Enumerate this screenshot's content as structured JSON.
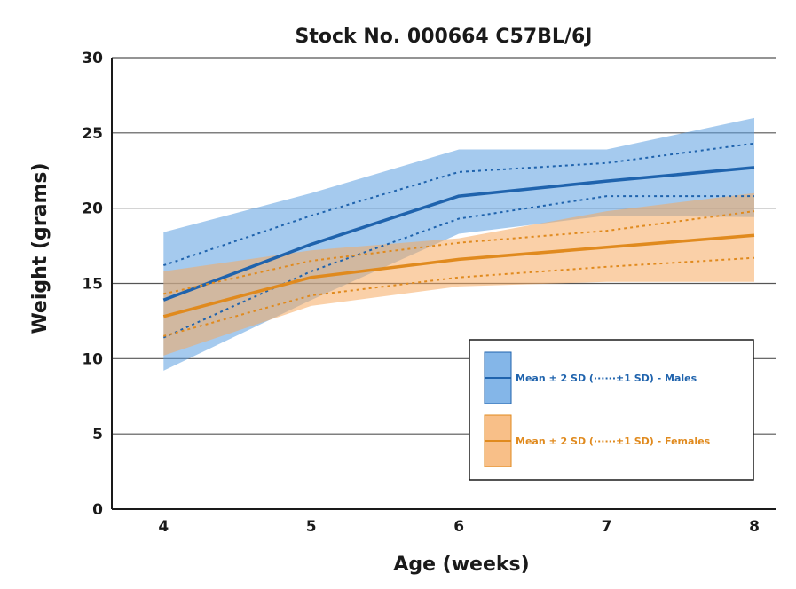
{
  "chart_data": {
    "type": "area",
    "title": "Stock No. 000664 C57BL/6J",
    "xlabel": "Age (weeks)",
    "ylabel": "Weight (grams)",
    "x": [
      4,
      5,
      6,
      7,
      8
    ],
    "x_ticks": [
      "4",
      "5",
      "6",
      "7",
      "8"
    ],
    "y_ticks": [
      "0",
      "5",
      "10",
      "15",
      "20",
      "25",
      "30"
    ],
    "xlim": [
      3.65,
      8.15
    ],
    "ylim": [
      0,
      30
    ],
    "grid": "horizontal",
    "legend_position": "bottom-right",
    "series": [
      {
        "name": "Mean ± 2 SD (······±1 SD) - Males",
        "color": "#1f63ad",
        "band_color": "#5b9ee0",
        "mean": [
          13.9,
          17.6,
          20.8,
          21.8,
          22.7
        ],
        "sd1_upper": [
          16.2,
          19.5,
          22.4,
          23.0,
          24.3
        ],
        "sd1_lower": [
          11.4,
          15.8,
          19.3,
          20.8,
          20.8
        ],
        "sd2_upper": [
          18.4,
          21.0,
          23.9,
          23.9,
          26.0
        ],
        "sd2_lower": [
          9.2,
          13.9,
          18.3,
          19.5,
          19.4
        ]
      },
      {
        "name": "Mean ± 2 SD (······±1 SD) - Females",
        "color": "#e08a1e",
        "band_color": "#f5a960",
        "mean": [
          12.8,
          15.4,
          16.6,
          17.4,
          18.2
        ],
        "sd1_upper": [
          14.3,
          16.5,
          17.7,
          18.5,
          19.8
        ],
        "sd1_lower": [
          11.5,
          14.2,
          15.4,
          16.1,
          16.7
        ],
        "sd2_upper": [
          15.8,
          17.2,
          18.0,
          19.8,
          21.0
        ],
        "sd2_lower": [
          10.2,
          13.5,
          14.8,
          15.1,
          15.1
        ]
      }
    ]
  }
}
